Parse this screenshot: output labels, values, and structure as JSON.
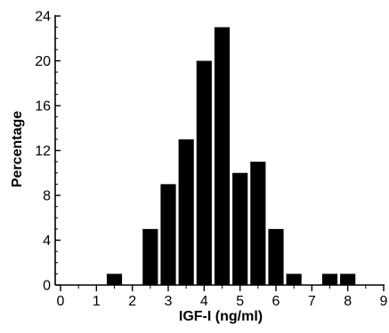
{
  "chart_data": {
    "type": "bar",
    "title": "",
    "xlabel": "IGF-I (ng/ml)",
    "ylabel": "Percentage",
    "xlim": [
      0,
      9
    ],
    "ylim": [
      0,
      24
    ],
    "x_ticks": [
      0,
      1,
      2,
      3,
      4,
      5,
      6,
      7,
      8,
      9
    ],
    "y_ticks": [
      0,
      4,
      8,
      12,
      16,
      20,
      24
    ],
    "bin_width": 0.5,
    "bins": [
      {
        "x": 1.5,
        "value": 1
      },
      {
        "x": 2.5,
        "value": 5
      },
      {
        "x": 3.0,
        "value": 9
      },
      {
        "x": 3.5,
        "value": 13
      },
      {
        "x": 4.0,
        "value": 20
      },
      {
        "x": 4.5,
        "value": 23
      },
      {
        "x": 5.0,
        "value": 10
      },
      {
        "x": 5.5,
        "value": 11
      },
      {
        "x": 6.0,
        "value": 5
      },
      {
        "x": 6.5,
        "value": 1
      },
      {
        "x": 7.5,
        "value": 1
      },
      {
        "x": 8.0,
        "value": 1
      }
    ],
    "grid": false,
    "legend": "none",
    "bar_color": "#000000"
  }
}
